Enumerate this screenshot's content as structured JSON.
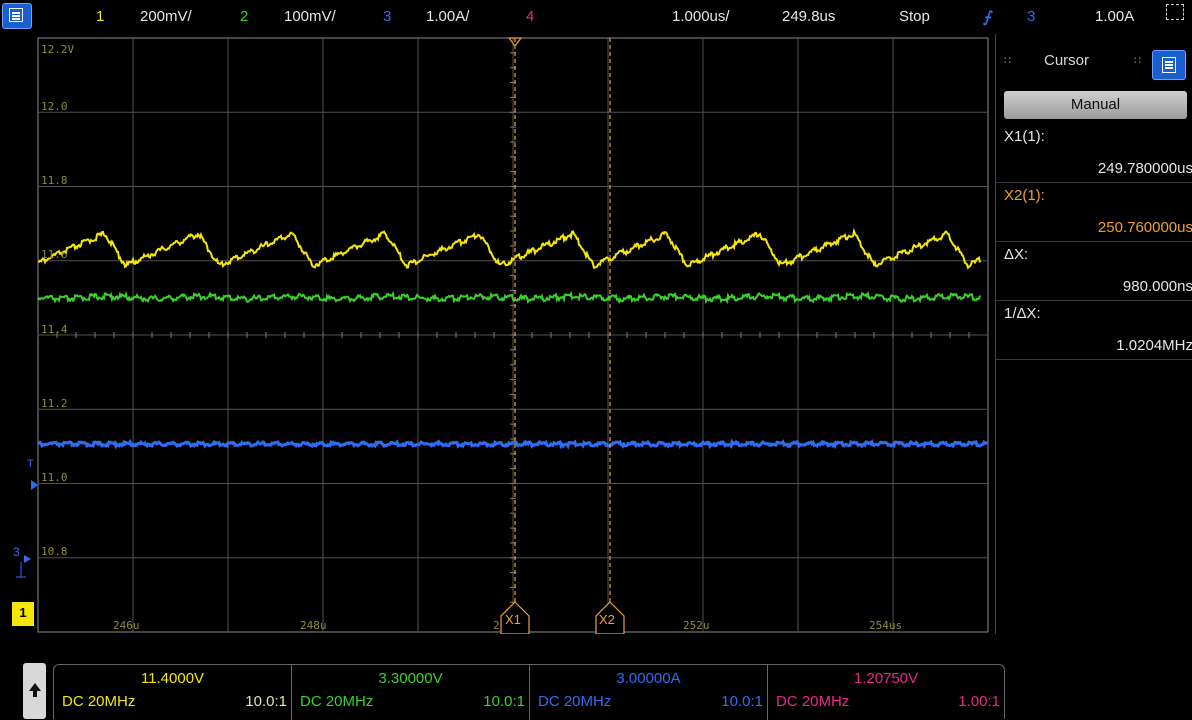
{
  "topbar": {
    "ch1_num": "1",
    "ch1_scale": "200mV/",
    "ch2_num": "2",
    "ch2_scale": "100mV/",
    "ch3_num": "3",
    "ch3_scale": "1.00A/",
    "ch4_num": "4",
    "timebase": "1.000us/",
    "delay": "249.8us",
    "run_state": "Stop",
    "trigger_source": "3",
    "trigger_level": "1.00A"
  },
  "graticule": {
    "y_labels": [
      "12.2V",
      "12.0",
      "11.8",
      "11.6",
      "11.4",
      "11.2",
      "11.0",
      "10.8"
    ],
    "x_labels": [
      "246u",
      "248u",
      "2",
      "252u",
      "254us"
    ],
    "trigger_marker": "T",
    "ch3_ground_marker": "3",
    "ch1_ground_marker": "1"
  },
  "cursors": {
    "x1_marker": "X1",
    "x2_marker": "X2"
  },
  "panel": {
    "title": "Cursor",
    "mode": "Manual",
    "x1_label": "X1(1):",
    "x1_value": "249.780000us",
    "x2_label": "X2(1):",
    "x2_value": "250.760000us",
    "dx_label": "ΔX:",
    "dx_value": "980.000ns",
    "inv_dx_label": "1/ΔX:",
    "inv_dx_value": "1.0204MHz"
  },
  "channels": [
    {
      "offset": "11.4000V",
      "coupling": "DC 20MHz",
      "probe": "10.0:1"
    },
    {
      "offset": "3.30000V",
      "coupling": "DC 20MHz",
      "probe": "10.0:1"
    },
    {
      "offset": "3.00000A",
      "coupling": "DC 20MHz",
      "probe": "10.0:1"
    },
    {
      "offset": "1.20750V",
      "coupling": "DC 20MHz",
      "probe": "1.00:1"
    }
  ],
  "colors": {
    "ch1": "#f5e60a",
    "ch2": "#3ad12a",
    "ch3": "#2f6cf0",
    "ch4": "#e8288c",
    "cursor": "#f0a030",
    "grid": "#505050",
    "ylabel": "#8c8c30"
  }
}
